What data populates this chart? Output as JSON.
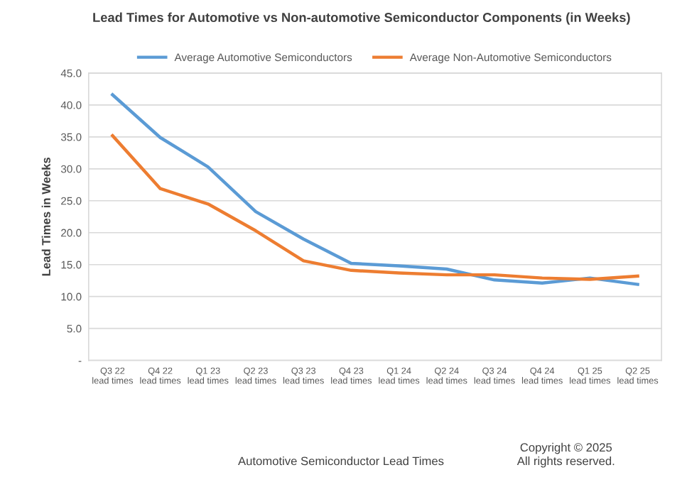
{
  "chart_data": {
    "type": "line",
    "title": "Lead Times for Automotive vs Non-automotive Semiconductor Components (in Weeks)",
    "ylabel": "Lead Times in Weeks",
    "categories": [
      "Q3 22\nlead times",
      "Q4 22\nlead times",
      "Q1 23\nlead times",
      "Q2 23\nlead times",
      "Q3 23\nlead times",
      "Q4 23\nlead times",
      "Q1 24\nlead times",
      "Q2 24\nlead times",
      "Q3 24\nlead times",
      "Q4 24\nlead times",
      "Q1 25\nlead times",
      "Q2 25\nlead times"
    ],
    "series": [
      {
        "name": "Average Automotive Semiconductors",
        "color": "#5b9bd5",
        "values": [
          41.6,
          34.9,
          30.3,
          23.3,
          19.0,
          15.2,
          14.8,
          14.3,
          12.6,
          12.1,
          12.9,
          11.9
        ]
      },
      {
        "name": "Average Non-Automotive Semiconductors",
        "color": "#ed7d31",
        "values": [
          35.2,
          26.9,
          24.5,
          20.3,
          15.6,
          14.1,
          13.7,
          13.4,
          13.4,
          12.9,
          12.7,
          13.2
        ]
      }
    ],
    "ylim": [
      0,
      45
    ],
    "yticks": [
      {
        "value": 0,
        "label": "-"
      },
      {
        "value": 5,
        "label": "5.0"
      },
      {
        "value": 10,
        "label": "10.0"
      },
      {
        "value": 15,
        "label": "15.0"
      },
      {
        "value": 20,
        "label": "20.0"
      },
      {
        "value": 25,
        "label": "25.0"
      },
      {
        "value": 30,
        "label": "30.0"
      },
      {
        "value": 35,
        "label": "35.0"
      },
      {
        "value": 40,
        "label": "40.0"
      },
      {
        "value": 45,
        "label": "45.0"
      }
    ],
    "grid": "y",
    "legend": "top",
    "marker": "none",
    "line_style": "solid",
    "annotations": [
      "Automotive Semiconductor Lead Times",
      "Copyright © 2025\nAll rights reserved."
    ]
  }
}
